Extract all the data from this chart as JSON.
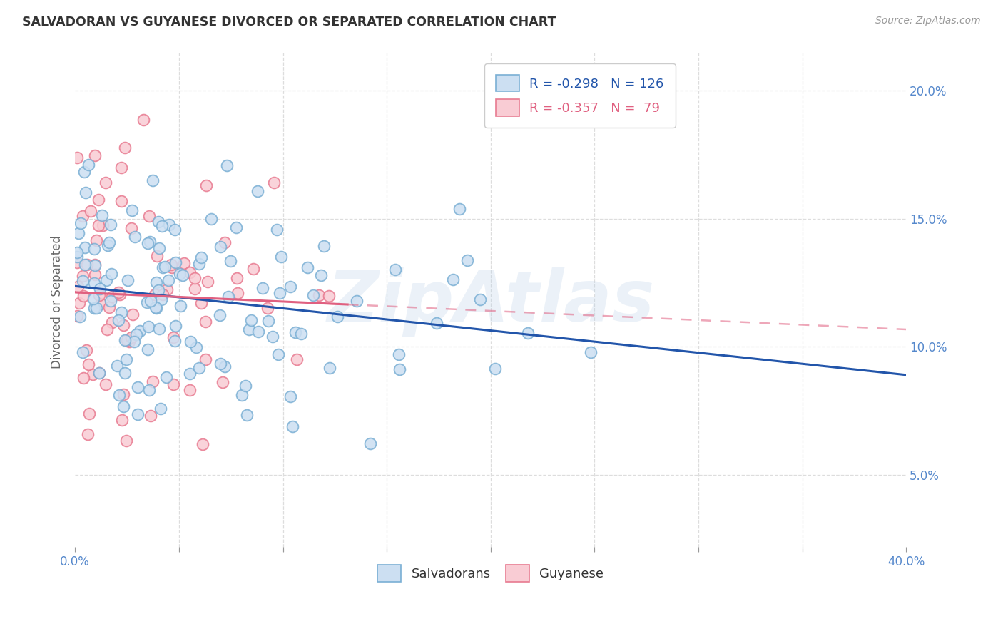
{
  "title": "SALVADORAN VS GUYANESE DIVORCED OR SEPARATED CORRELATION CHART",
  "source": "Source: ZipAtlas.com",
  "ylabel": "Divorced or Separated",
  "legend_salvadoran": "Salvadorans",
  "legend_guyanese": "Guyanese",
  "r_salvadoran": -0.298,
  "n_salvadoran": 126,
  "r_guyanese": -0.357,
  "n_guyanese": 79,
  "blue_fill": "#ccdff2",
  "blue_edge": "#7aafd4",
  "blue_line": "#2255aa",
  "pink_fill": "#f9ccd4",
  "pink_edge": "#e87a90",
  "pink_line": "#e06080",
  "bg_color": "#ffffff",
  "watermark": "ZipAtlas",
  "xlim": [
    0.0,
    0.4
  ],
  "ylim": [
    0.02,
    0.215
  ],
  "y_ticks": [
    0.05,
    0.1,
    0.15,
    0.2
  ],
  "x_ticks": [
    0.0,
    0.05,
    0.1,
    0.15,
    0.2,
    0.25,
    0.3,
    0.35,
    0.4
  ],
  "grid_color": "#dddddd",
  "tick_color": "#999999",
  "right_tick_color": "#5588cc",
  "title_color": "#333333",
  "source_color": "#999999",
  "ylabel_color": "#666666",
  "legend_r1_color": "#2255aa",
  "legend_r2_color": "#e06080",
  "legend_n_color": "#22aacc"
}
